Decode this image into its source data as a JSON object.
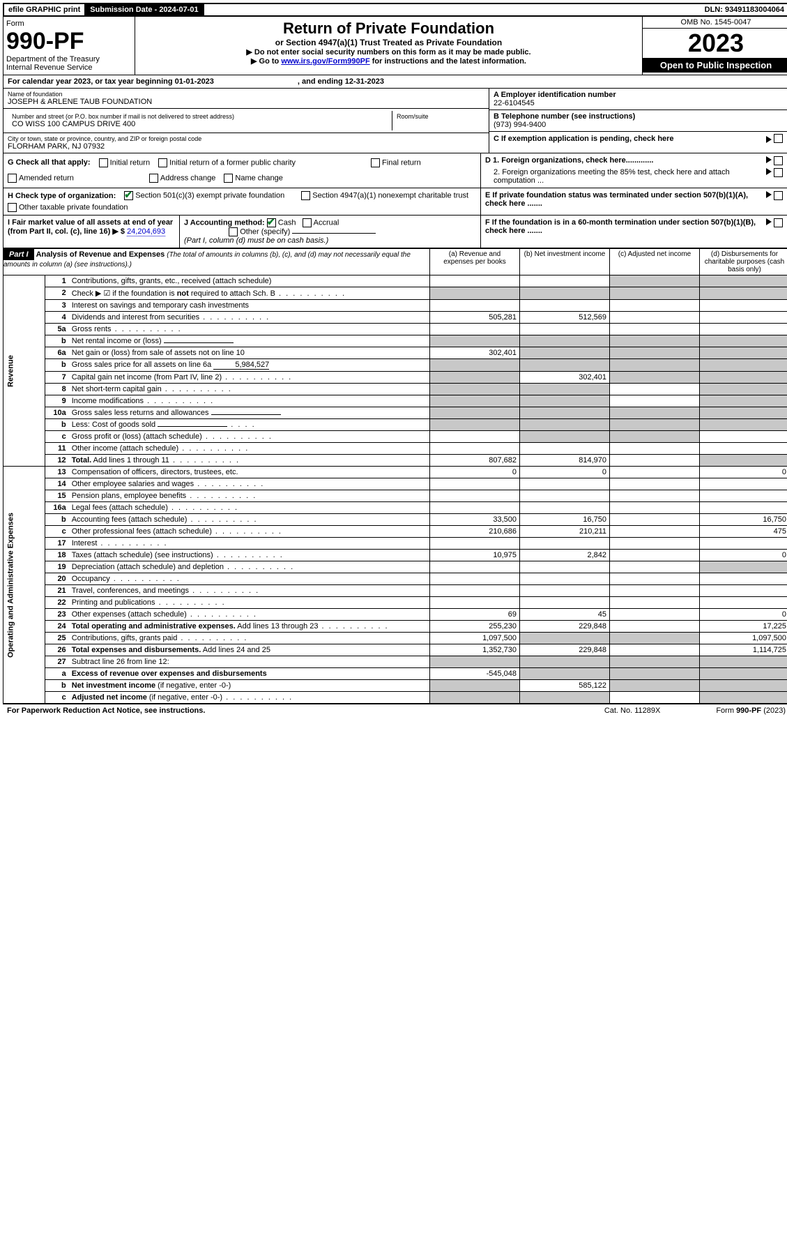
{
  "topbar": {
    "efile": "efile GRAPHIC print",
    "submission_label": "Submission Date - 2024-07-01",
    "dln": "DLN: 93491183004064"
  },
  "header": {
    "form_word": "Form",
    "form_no": "990-PF",
    "dept": "Department of the Treasury",
    "irs": "Internal Revenue Service",
    "title": "Return of Private Foundation",
    "subtitle": "or Section 4947(a)(1) Trust Treated as Private Foundation",
    "instr1": "▶ Do not enter social security numbers on this form as it may be made public.",
    "instr2_pre": "▶ Go to ",
    "instr2_link": "www.irs.gov/Form990PF",
    "instr2_post": " for instructions and the latest information.",
    "omb": "OMB No. 1545-0047",
    "year": "2023",
    "open": "Open to Public Inspection"
  },
  "calyear": {
    "text": "For calendar year 2023, or tax year beginning 01-01-2023",
    "ending": ", and ending 12-31-2023"
  },
  "entity": {
    "name_label": "Name of foundation",
    "name": "JOSEPH & ARLENE TAUB FOUNDATION",
    "addr_label": "Number and street (or P.O. box number if mail is not delivered to street address)",
    "addr": "CO WISS 100 CAMPUS DRIVE 400",
    "room_label": "Room/suite",
    "city_label": "City or town, state or province, country, and ZIP or foreign postal code",
    "city": "FLORHAM PARK, NJ  07932",
    "ein_label": "A Employer identification number",
    "ein": "22-6104545",
    "phone_label": "B Telephone number (see instructions)",
    "phone": "(973) 994-9400",
    "c_label": "C If exemption application is pending, check here",
    "d1": "D 1. Foreign organizations, check here.............",
    "d2": "2. Foreign organizations meeting the 85% test, check here and attach computation ...",
    "e": "E  If private foundation status was terminated under section 507(b)(1)(A), check here .......",
    "f": "F  If the foundation is in a 60-month termination under section 507(b)(1)(B), check here .......",
    "g_label": "G Check all that apply:",
    "g_opts": [
      "Initial return",
      "Final return",
      "Address change",
      "Initial return of a former public charity",
      "Amended return",
      "Name change"
    ],
    "h_label": "H Check type of organization:",
    "h_opts": [
      "Section 501(c)(3) exempt private foundation",
      "Section 4947(a)(1) nonexempt charitable trust",
      "Other taxable private foundation"
    ],
    "i_label": "I Fair market value of all assets at end of year (from Part II, col. (c), line 16) ▶ $",
    "i_value": "24,204,693",
    "j_label": "J Accounting method:",
    "j_cash": "Cash",
    "j_accrual": "Accrual",
    "j_other": "Other (specify)",
    "j_note": "(Part I, column (d) must be on cash basis.)"
  },
  "part1": {
    "label": "Part I",
    "title": "Analysis of Revenue and Expenses",
    "title_note": " (The total of amounts in columns (b), (c), and (d) may not necessarily equal the amounts in column (a) (see instructions).)",
    "col_a": "(a)   Revenue and expenses per books",
    "col_b": "(b)   Net investment income",
    "col_c": "(c)   Adjusted net income",
    "col_d": "(d)   Disbursements for charitable purposes (cash basis only)"
  },
  "sections": {
    "revenue": "Revenue",
    "expenses": "Operating and Administrative Expenses"
  },
  "rows": [
    {
      "n": "1",
      "d": "Contributions, gifts, grants, etc., received (attach schedule)",
      "a": "",
      "b": "",
      "c": "",
      "dd": "",
      "grey_c": true,
      "grey_d": true
    },
    {
      "n": "2",
      "d": "Check ▶ ☑ if the foundation is <b>not</b> required to attach Sch. B",
      "dots": true,
      "noval": true
    },
    {
      "n": "3",
      "d": "Interest on savings and temporary cash investments"
    },
    {
      "n": "4",
      "d": "Dividends and interest from securities",
      "dots": true,
      "a": "505,281",
      "b": "512,569"
    },
    {
      "n": "5a",
      "d": "Gross rents",
      "dots": true
    },
    {
      "n": "b",
      "d": "Net rental income or (loss)",
      "under": true,
      "grey_all": true
    },
    {
      "n": "6a",
      "d": "Net gain or (loss) from sale of assets not on line 10",
      "a": "302,401",
      "grey_bcd": true
    },
    {
      "n": "b",
      "d": "Gross sales price for all assets on line 6a",
      "under_val": "5,984,527",
      "grey_all": true
    },
    {
      "n": "7",
      "d": "Capital gain net income (from Part IV, line 2)",
      "dots": true,
      "grey_a": true,
      "b": "302,401",
      "grey_cd": true
    },
    {
      "n": "8",
      "d": "Net short-term capital gain",
      "dots": true,
      "grey_ab": true,
      "grey_d": true
    },
    {
      "n": "9",
      "d": "Income modifications",
      "dots": true,
      "grey_ab": true,
      "grey_d": true
    },
    {
      "n": "10a",
      "d": "Gross sales less returns and allowances",
      "under": true,
      "grey_all": true
    },
    {
      "n": "b",
      "d": "Less: Cost of goods sold",
      "dots_s": true,
      "under": true,
      "grey_all": true
    },
    {
      "n": "c",
      "d": "Gross profit or (loss) (attach schedule)",
      "dots": true,
      "grey_bc_d": true
    },
    {
      "n": "11",
      "d": "Other income (attach schedule)",
      "dots": true
    },
    {
      "n": "12",
      "d": "<b>Total.</b> Add lines 1 through 11",
      "dots": true,
      "a": "807,682",
      "b": "814,970",
      "grey_d": true
    },
    {
      "n": "13",
      "d": "Compensation of officers, directors, trustees, etc.",
      "a": "0",
      "b": "0",
      "dd": "0"
    },
    {
      "n": "14",
      "d": "Other employee salaries and wages",
      "dots": true
    },
    {
      "n": "15",
      "d": "Pension plans, employee benefits",
      "dots": true
    },
    {
      "n": "16a",
      "d": "Legal fees (attach schedule)",
      "dots": true
    },
    {
      "n": "b",
      "d": "Accounting fees (attach schedule)",
      "dots": true,
      "a": "33,500",
      "b": "16,750",
      "dd": "16,750"
    },
    {
      "n": "c",
      "d": "Other professional fees (attach schedule)",
      "dots": true,
      "a": "210,686",
      "b": "210,211",
      "dd": "475"
    },
    {
      "n": "17",
      "d": "Interest",
      "dots": true
    },
    {
      "n": "18",
      "d": "Taxes (attach schedule) (see instructions)",
      "dots": true,
      "a": "10,975",
      "b": "2,842",
      "dd": "0"
    },
    {
      "n": "19",
      "d": "Depreciation (attach schedule) and depletion",
      "dots": true,
      "grey_d": true
    },
    {
      "n": "20",
      "d": "Occupancy",
      "dots": true
    },
    {
      "n": "21",
      "d": "Travel, conferences, and meetings",
      "dots": true
    },
    {
      "n": "22",
      "d": "Printing and publications",
      "dots": true
    },
    {
      "n": "23",
      "d": "Other expenses (attach schedule)",
      "dots": true,
      "a": "69",
      "b": "45",
      "dd": "0"
    },
    {
      "n": "24",
      "d": "<b>Total operating and administrative expenses.</b> Add lines 13 through 23",
      "dots": true,
      "a": "255,230",
      "b": "229,848",
      "dd": "17,225"
    },
    {
      "n": "25",
      "d": "Contributions, gifts, grants paid",
      "dots": true,
      "a": "1,097,500",
      "grey_bc": true,
      "dd": "1,097,500"
    },
    {
      "n": "26",
      "d": "<b>Total expenses and disbursements.</b> Add lines 24 and 25",
      "a": "1,352,730",
      "b": "229,848",
      "dd": "1,114,725"
    },
    {
      "n": "27",
      "d": "Subtract line 26 from line 12:",
      "grey_all": true
    },
    {
      "n": "a",
      "d": "<b>Excess of revenue over expenses and disbursements</b>",
      "a": "-545,048",
      "grey_bcd": true
    },
    {
      "n": "b",
      "d": "<b>Net investment income</b> (if negative, enter -0-)",
      "grey_a": true,
      "b": "585,122",
      "grey_cd": true
    },
    {
      "n": "c",
      "d": "<b>Adjusted net income</b> (if negative, enter -0-)",
      "dots": true,
      "grey_ab": true,
      "grey_d": true
    }
  ],
  "footer": {
    "left": "For Paperwork Reduction Act Notice, see instructions.",
    "mid": "Cat. No. 11289X",
    "right": "Form 990-PF (2023)"
  }
}
